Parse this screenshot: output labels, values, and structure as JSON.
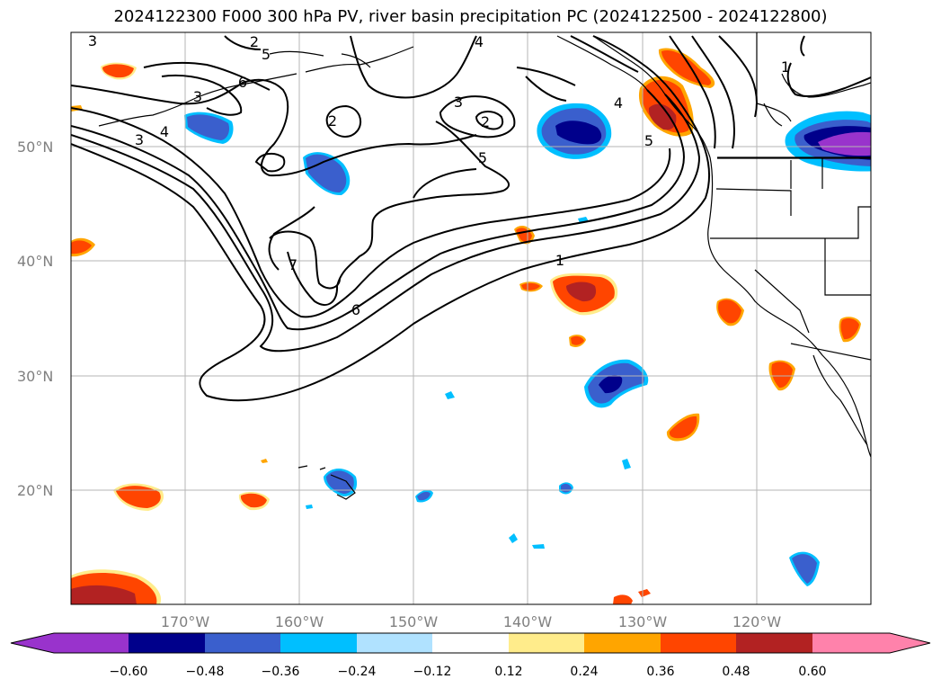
{
  "title": "2024122300 F000 300 hPa PV, river basin precipitation PC (2024122500 - 2024122800)",
  "lat_labels": [
    "50°N",
    "40°N",
    "30°N",
    "20°N"
  ],
  "lon_labels": [
    "170°W",
    "160°W",
    "150°W",
    "140°W",
    "130°W",
    "120°W"
  ],
  "colorbar": {
    "ticks": [
      "−0.60",
      "−0.48",
      "−0.36",
      "−0.24",
      "−0.12",
      "0.12",
      "0.24",
      "0.36",
      "0.48",
      "0.60"
    ],
    "colors": [
      "#9933cc",
      "#00008b",
      "#3a5fcd",
      "#00bfff",
      "#b0e2ff",
      "#ffffff",
      "#ffec8b",
      "#ffa500",
      "#ff4500",
      "#b22222",
      "#ff82ab",
      "#ffb6c1"
    ]
  },
  "contour_labels": [
    "3",
    "2",
    "6",
    "5",
    "3",
    "4",
    "2",
    "4",
    "3",
    "2",
    "5",
    "1",
    "5",
    "7",
    "6",
    "1",
    "3",
    "4"
  ],
  "map": {
    "projection": "cylindrical",
    "lon_range": [
      -180,
      -110
    ],
    "lat_range": [
      10,
      60
    ],
    "field_contoured": "300 hPa PV",
    "field_shaded": "river basin precipitation PC"
  }
}
